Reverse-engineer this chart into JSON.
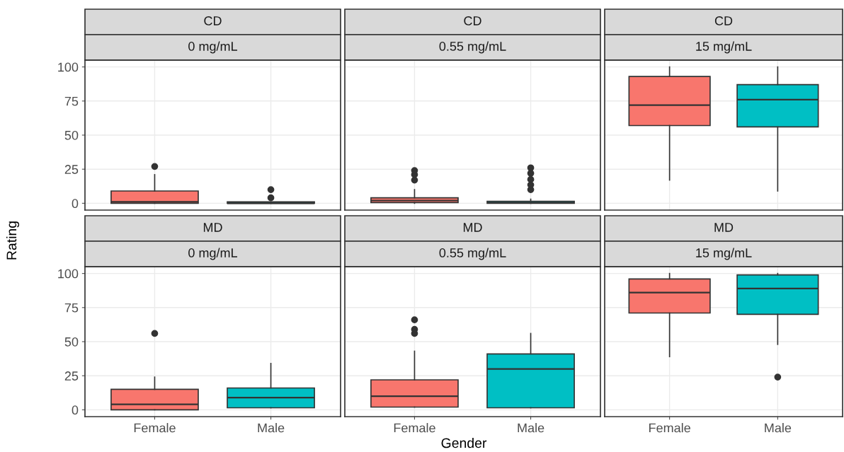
{
  "chart_data": [
    {
      "type": "box",
      "title": "CD",
      "subtitle": "0 mg/mL",
      "categories": [
        "Female",
        "Male"
      ],
      "colors": [
        "#f8766d",
        "#00bfc4"
      ],
      "ylim": [
        -5,
        105
      ],
      "yticks": [
        0,
        25,
        50,
        75,
        100
      ],
      "grid": true,
      "tick_labels": "y",
      "ylabel": "Rating",
      "boxes": [
        {
          "low": 0,
          "q1": 0,
          "median": 1,
          "q3": 9,
          "high": 21,
          "outliers": [
            27
          ]
        },
        {
          "low": 0,
          "q1": 0,
          "median": 0,
          "q3": 1,
          "high": 1,
          "outliers": [
            4,
            10
          ]
        }
      ]
    },
    {
      "type": "box",
      "title": "CD",
      "subtitle": "0.55 mg/mL",
      "categories": [
        "Female",
        "Male"
      ],
      "colors": [
        "#f8766d",
        "#00bfc4"
      ],
      "ylim": [
        -5,
        105
      ],
      "yticks": [
        0,
        25,
        50,
        75,
        100
      ],
      "grid": true,
      "tick_labels": false,
      "boxes": [
        {
          "low": 0,
          "q1": 0.5,
          "median": 2,
          "q3": 4,
          "high": 10,
          "outliers": [
            17,
            21,
            24
          ]
        },
        {
          "low": 0,
          "q1": 0,
          "median": 0.5,
          "q3": 1.5,
          "high": 3,
          "outliers": [
            10,
            13.5,
            17.5,
            22,
            26
          ]
        }
      ]
    },
    {
      "type": "box",
      "title": "CD",
      "subtitle": "15 mg/mL",
      "categories": [
        "Female",
        "Male"
      ],
      "colors": [
        "#f8766d",
        "#00bfc4"
      ],
      "ylim": [
        -5,
        105
      ],
      "yticks": [
        0,
        25,
        50,
        75,
        100
      ],
      "grid": true,
      "tick_labels": false,
      "boxes": [
        {
          "low": 17,
          "q1": 57,
          "median": 72,
          "q3": 93,
          "high": 100
        },
        {
          "low": 9,
          "q1": 56,
          "median": 76,
          "q3": 87,
          "high": 100
        }
      ]
    },
    {
      "type": "box",
      "title": "MD",
      "subtitle": "0 mg/mL",
      "categories": [
        "Female",
        "Male"
      ],
      "colors": [
        "#f8766d",
        "#00bfc4"
      ],
      "ylim": [
        -5,
        105
      ],
      "yticks": [
        0,
        25,
        50,
        75,
        100
      ],
      "grid": true,
      "boxes": [
        {
          "low": 0,
          "q1": 0,
          "median": 4,
          "q3": 15,
          "high": 24,
          "outliers": [
            56
          ]
        },
        {
          "low": 1.5,
          "q1": 1.5,
          "median": 9,
          "q3": 16,
          "high": 34
        }
      ]
    },
    {
      "type": "box",
      "title": "MD",
      "subtitle": "0.55 mg/mL",
      "categories": [
        "Female",
        "Male"
      ],
      "colors": [
        "#f8766d",
        "#00bfc4"
      ],
      "ylim": [
        -5,
        105
      ],
      "yticks": [
        0,
        25,
        50,
        75,
        100
      ],
      "grid": true,
      "tick_labels": "x",
      "xlabel": "Gender",
      "boxes": [
        {
          "low": 2,
          "q1": 2,
          "median": 10,
          "q3": 22,
          "high": 43,
          "outliers": [
            56,
            59,
            66
          ]
        },
        {
          "low": 1.5,
          "q1": 1.5,
          "median": 30,
          "q3": 41,
          "high": 56
        }
      ]
    },
    {
      "type": "box",
      "title": "MD",
      "subtitle": "15 mg/mL",
      "categories": [
        "Female",
        "Male"
      ],
      "colors": [
        "#f8766d",
        "#00bfc4"
      ],
      "ylim": [
        -5,
        105
      ],
      "yticks": [
        0,
        25,
        50,
        75,
        100
      ],
      "grid": true,
      "tick_labels": "x",
      "boxes": [
        {
          "low": 39,
          "q1": 71,
          "median": 86,
          "q3": 96,
          "high": 100
        },
        {
          "low": 48,
          "q1": 70,
          "median": 89,
          "q3": 99,
          "high": 100,
          "outliers": [
            24
          ]
        }
      ]
    }
  ]
}
